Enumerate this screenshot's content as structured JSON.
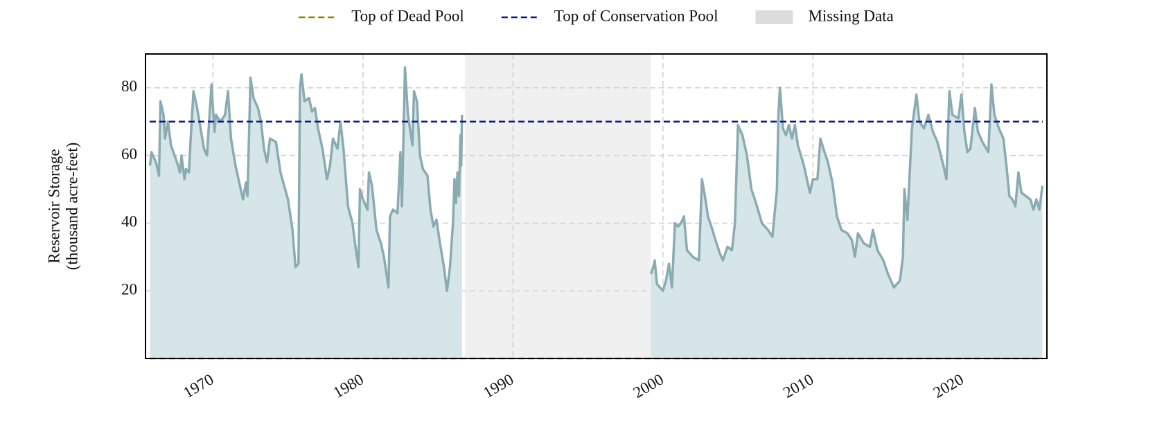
{
  "chart_data": {
    "type": "line",
    "y_label": [
      "Reservoir Storage",
      "(thousand acre-feet)"
    ],
    "xlim": [
      1965.5,
      2025.6
    ],
    "ylim": [
      0,
      90
    ],
    "xticks": [
      1970,
      1980,
      1990,
      2000,
      2010,
      2020
    ],
    "yticks": [
      20,
      40,
      60,
      80
    ],
    "grid": true,
    "legend": "top",
    "x": [
      1965.8,
      1965.9,
      1966.2,
      1966.4,
      1966.5,
      1966.7,
      1966.8,
      1967.0,
      1967.2,
      1967.6,
      1967.8,
      1967.9,
      1968.1,
      1968.2,
      1968.4,
      1968.5,
      1968.7,
      1968.9,
      1969.1,
      1969.4,
      1969.6,
      1969.9,
      1970.1,
      1970.2,
      1970.5,
      1970.8,
      1971.0,
      1971.2,
      1971.5,
      1971.8,
      1972.0,
      1972.2,
      1972.3,
      1972.5,
      1972.7,
      1973.0,
      1973.2,
      1973.4,
      1973.6,
      1973.8,
      1974.2,
      1974.5,
      1975.0,
      1975.3,
      1975.5,
      1975.7,
      1975.8,
      1975.9,
      1976.1,
      1976.4,
      1976.6,
      1976.8,
      1977.0,
      1977.3,
      1977.6,
      1977.8,
      1978.0,
      1978.3,
      1978.5,
      1978.7,
      1979.0,
      1979.3,
      1979.5,
      1979.7,
      1979.8,
      1980.0,
      1980.3,
      1980.4,
      1980.6,
      1980.9,
      1981.2,
      1981.4,
      1981.6,
      1981.7,
      1981.8,
      1982.0,
      1982.3,
      1982.5,
      1982.6,
      1982.8,
      1983.0,
      1983.3,
      1983.4,
      1983.6,
      1983.8,
      1984.0,
      1984.3,
      1984.5,
      1984.7,
      1984.9,
      1985.1,
      1985.4,
      1985.6,
      1985.8,
      1986.0,
      1986.1,
      1986.2,
      1986.3,
      1986.4,
      1986.5,
      1986.55,
      1986.6,
      1993.0,
      1999.2,
      1999.35,
      1999.45,
      1999.6,
      1999.8,
      2000.0,
      2000.2,
      2000.4,
      2000.6,
      2000.8,
      2001.0,
      2001.2,
      2001.4,
      2001.6,
      2001.8,
      2002.0,
      2002.4,
      2002.6,
      2002.8,
      2003.0,
      2003.3,
      2003.5,
      2003.8,
      2004.0,
      2004.3,
      2004.6,
      2004.8,
      2005.0,
      2005.3,
      2005.6,
      2005.9,
      2006.2,
      2006.6,
      2007.0,
      2007.3,
      2007.6,
      2007.7,
      2007.8,
      2008.0,
      2008.2,
      2008.4,
      2008.6,
      2008.8,
      2009.0,
      2009.4,
      2009.8,
      2010.0,
      2010.3,
      2010.5,
      2010.7,
      2011.0,
      2011.3,
      2011.6,
      2011.9,
      2012.3,
      2012.6,
      2012.8,
      2013.0,
      2013.4,
      2013.8,
      2014.0,
      2014.3,
      2014.7,
      2015.0,
      2015.4,
      2015.8,
      2016.0,
      2016.1,
      2016.3,
      2016.6,
      2016.9,
      2017.1,
      2017.4,
      2017.7,
      2018.0,
      2018.3,
      2018.7,
      2018.9,
      2019.1,
      2019.3,
      2019.7,
      2019.9,
      2020.1,
      2020.3,
      2020.5,
      2020.8,
      2021.0,
      2021.3,
      2021.7,
      2021.9,
      2022.1,
      2022.4,
      2022.7,
      2022.9,
      2023.1,
      2023.3,
      2023.5,
      2023.7,
      2023.9,
      2024.2,
      2024.5,
      2024.7,
      2024.9,
      2025.1,
      2025.3
    ],
    "series": [
      {
        "color": "#8aabb2",
        "fill": "#d5e5e8",
        "values": [
          57,
          61,
          58,
          54,
          76,
          72,
          65,
          70,
          63,
          58,
          55,
          60,
          53,
          56,
          55,
          64,
          79,
          75,
          70,
          62,
          60,
          81,
          67,
          72,
          70,
          72,
          79,
          65,
          57,
          51,
          47,
          52,
          48,
          83,
          77,
          74,
          70,
          62,
          58,
          65,
          64,
          55,
          47,
          38,
          27,
          28,
          80,
          84,
          76,
          77,
          73,
          74,
          68,
          62,
          53,
          57,
          65,
          62,
          70,
          62,
          45,
          40,
          33,
          27,
          50,
          47,
          44,
          55,
          51,
          38,
          34,
          30,
          24,
          21,
          42,
          44,
          43,
          61,
          45,
          86,
          72,
          63,
          79,
          76,
          60,
          56,
          54,
          44,
          39,
          41,
          35,
          27,
          20,
          27,
          40,
          53,
          46,
          55,
          48,
          66,
          57,
          72,
          null,
          25,
          27,
          29,
          22,
          21,
          20,
          23,
          28,
          21,
          40,
          39,
          40,
          42,
          32,
          31,
          30,
          29,
          53,
          48,
          42,
          38,
          35,
          31,
          29,
          33,
          32,
          40,
          69,
          66,
          60,
          50,
          46,
          40,
          38,
          36,
          50,
          72,
          80,
          68,
          66,
          69,
          65,
          69,
          63,
          57,
          49,
          53,
          53,
          65,
          62,
          58,
          52,
          42,
          38,
          37,
          35,
          30,
          37,
          34,
          33,
          38,
          32,
          29,
          25,
          21,
          23,
          30,
          50,
          41,
          68,
          78,
          70,
          68,
          72,
          67,
          64,
          57,
          53,
          79,
          72,
          71,
          78,
          67,
          61,
          62,
          74,
          67,
          64,
          61,
          81,
          72,
          68,
          65,
          57,
          48,
          47,
          45,
          55,
          49,
          48,
          47,
          44,
          47,
          44,
          51
        ]
      }
    ],
    "reference_lines": [
      {
        "name": "Top of Dead Pool",
        "value": 0,
        "color": "#8b8000"
      },
      {
        "name": "Top of Conservation Pool",
        "value": 70,
        "color": "#0a1a8a"
      }
    ],
    "spans": [
      {
        "name": "Missing Data",
        "start": 1986.8,
        "end": 1999.2,
        "color": "#f0f0f0",
        "legend_color": "#dcdcdc"
      }
    ]
  }
}
